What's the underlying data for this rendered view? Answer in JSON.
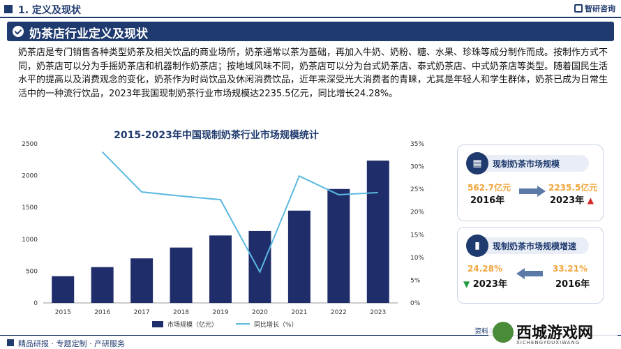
{
  "header": {
    "section_title": "1. 定义及现状",
    "brand": "智研咨询"
  },
  "banner": {
    "title": "奶茶店行业定义及现状"
  },
  "paragraph": "奶茶店是专门销售各种类型奶茶及相关饮品的商业场所，奶茶通常以茶为基础，再加入牛奶、奶粉、糖、水果、珍珠等成分制作而成。按制作方式不同，奶茶店可以分为手摇奶茶店和机器制作奶茶店；按地域风味不同，奶茶店可以分为台式奶茶店、泰式奶茶店、中式奶茶店等类型。随着国民生活水平的提高以及消费观念的变化，奶茶作为时尚饮品及休闲消费饮品，近年来深受光大消费者的青睐，尤其是年轻人和学生群体，奶茶已成为日常生活中的一种流行饮品，2023年我国现制奶茶行业市场规模达2235.5亿元，同比增长24.28%。",
  "chart_data": {
    "type": "bar",
    "title": "2015-2023年中国现制奶茶行业市场规模统计",
    "categories": [
      "2015",
      "2016",
      "2017",
      "2018",
      "2019",
      "2020",
      "2021",
      "2022",
      "2023"
    ],
    "series": [
      {
        "name": "市场规模（亿元）",
        "type": "bar",
        "axis": "left",
        "values": [
          420,
          562.7,
          700,
          870,
          1060,
          1130,
          1450,
          1790,
          2235.5
        ],
        "color": "#1f2d6b"
      },
      {
        "name": "同比增长（%）",
        "type": "line",
        "axis": "right",
        "values": [
          null,
          33.21,
          24.4,
          23.5,
          22.7,
          6.8,
          27.9,
          23.8,
          24.28
        ],
        "color": "#5bb8e0"
      }
    ],
    "ylim_left": [
      0,
      2500
    ],
    "ylim_right": [
      0,
      35
    ],
    "left_ticks": [
      "0",
      "500",
      "1000",
      "1500",
      "2000",
      "2500"
    ],
    "right_ticks": [
      "0%",
      "5%",
      "10%",
      "15%",
      "20%",
      "25%",
      "30%",
      "35%"
    ],
    "legend_position": "bottom"
  },
  "card1": {
    "title": "现制奶茶市场规模",
    "left_value": "562.7亿元",
    "left_year": "2016年",
    "right_value": "2235.5亿元",
    "right_year": "2023年",
    "icon": "building-icon"
  },
  "card2": {
    "title": "现制奶茶市场规模增速",
    "left_value": "24.28%",
    "left_year": "2023年",
    "right_value": "33.21%",
    "right_year": "2016年",
    "icon": "chart-icon"
  },
  "footer": {
    "text": "精品研报 · 专题定制 · 产研服务",
    "source": "资料来源："
  },
  "watermark": {
    "title": "西城游戏网",
    "subtitle": "XICHENGYOUXIWANG"
  }
}
